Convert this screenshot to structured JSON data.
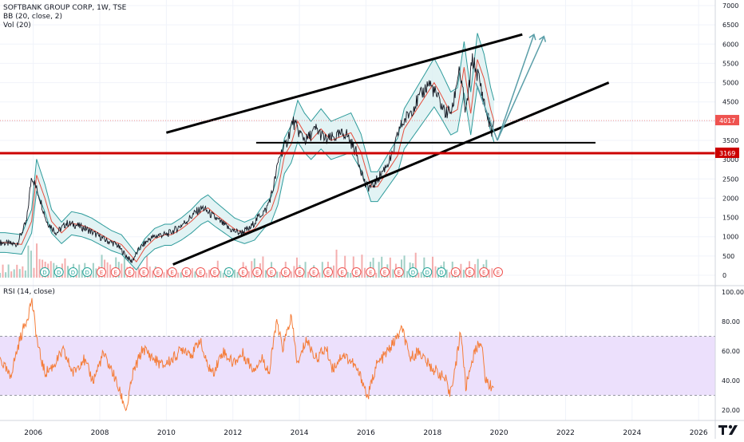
{
  "chart_data": [
    {
      "type": "line",
      "panel": "price",
      "title": "SOFTBANK GROUP CORP, 1W, TSE",
      "indicators": [
        "BB (20, close, 2)",
        "Vol (20)"
      ],
      "y_ticks": [
        7000,
        6500,
        6000,
        5500,
        5000,
        4500,
        4000,
        3500,
        3000,
        2500,
        2000,
        1500,
        1000,
        500,
        0
      ],
      "ylim": [
        -150,
        7050
      ],
      "x_ticks": [
        "2006",
        "2008",
        "2010",
        "2012",
        "2014",
        "2016",
        "2018",
        "2020",
        "2022",
        "2024",
        "2026"
      ],
      "xlim": [
        2005.0,
        2026.5
      ],
      "price_labels": [
        {
          "label": "4017",
          "value": 4017,
          "color": "#ef5350"
        },
        {
          "label": "3169",
          "value": 3169,
          "color": "#cc0000"
        }
      ],
      "series": [
        {
          "values": [
            [
              2005.0,
              850
            ],
            [
              2005.5,
              800
            ],
            [
              2005.8,
              1400
            ],
            [
              2005.95,
              2600
            ],
            [
              2006.2,
              2000
            ],
            [
              2006.4,
              1400
            ],
            [
              2006.7,
              1100
            ],
            [
              2007.0,
              1350
            ],
            [
              2007.3,
              1300
            ],
            [
              2007.6,
              1200
            ],
            [
              2007.9,
              1050
            ],
            [
              2008.2,
              900
            ],
            [
              2008.5,
              800
            ],
            [
              2008.8,
              500
            ],
            [
              2008.95,
              350
            ],
            [
              2009.2,
              700
            ],
            [
              2009.5,
              950
            ],
            [
              2009.8,
              1050
            ],
            [
              2010.0,
              1050
            ],
            [
              2010.3,
              1200
            ],
            [
              2010.6,
              1400
            ],
            [
              2010.9,
              1650
            ],
            [
              2011.1,
              1750
            ],
            [
              2011.3,
              1600
            ],
            [
              2011.6,
              1400
            ],
            [
              2011.9,
              1200
            ],
            [
              2012.2,
              1100
            ],
            [
              2012.5,
              1200
            ],
            [
              2012.8,
              1550
            ],
            [
              2013.0,
              1700
            ],
            [
              2013.2,
              2200
            ],
            [
              2013.4,
              3100
            ],
            [
              2013.6,
              3400
            ],
            [
              2013.8,
              4000
            ],
            [
              2014.0,
              3700
            ],
            [
              2014.2,
              3500
            ],
            [
              2014.5,
              3800
            ],
            [
              2014.8,
              3500
            ],
            [
              2015.1,
              3600
            ],
            [
              2015.4,
              3700
            ],
            [
              2015.7,
              3200
            ],
            [
              2016.0,
              2300
            ],
            [
              2016.2,
              2300
            ],
            [
              2016.5,
              2700
            ],
            [
              2016.8,
              3100
            ],
            [
              2017.0,
              3800
            ],
            [
              2017.3,
              4200
            ],
            [
              2017.6,
              4600
            ],
            [
              2017.9,
              5000
            ],
            [
              2018.1,
              4700
            ],
            [
              2018.4,
              4200
            ],
            [
              2018.6,
              4300
            ],
            [
              2018.8,
              5400
            ],
            [
              2019.0,
              4200
            ],
            [
              2019.2,
              5600
            ],
            [
              2019.4,
              5100
            ],
            [
              2019.6,
              4300
            ],
            [
              2019.8,
              3700
            ],
            [
              2019.85,
              4017
            ]
          ]
        }
      ],
      "annotations": [
        "upper channel trendline",
        "lower channel trendline",
        "horizontal support line",
        "red horizontal line at 3169",
        "two projected arrows"
      ]
    },
    {
      "type": "line",
      "panel": "rsi",
      "title": "RSI (14, close)",
      "y_ticks": [
        100,
        80,
        60,
        40,
        20
      ],
      "y_tick_labels": [
        "100.00",
        "80.00",
        "60.00",
        "40.00",
        "20.00"
      ],
      "ylim": [
        15,
        103
      ],
      "band": [
        30,
        70
      ],
      "series": [
        {
          "values": [
            [
              2005.0,
              55
            ],
            [
              2005.3,
              42
            ],
            [
              2005.6,
              68
            ],
            [
              2005.85,
              85
            ],
            [
              2005.95,
              95
            ],
            [
              2006.15,
              62
            ],
            [
              2006.35,
              45
            ],
            [
              2006.6,
              50
            ],
            [
              2006.9,
              60
            ],
            [
              2007.2,
              45
            ],
            [
              2007.5,
              55
            ],
            [
              2007.8,
              40
            ],
            [
              2008.1,
              58
            ],
            [
              2008.4,
              45
            ],
            [
              2008.6,
              32
            ],
            [
              2008.8,
              20
            ],
            [
              2009.0,
              45
            ],
            [
              2009.3,
              62
            ],
            [
              2009.6,
              55
            ],
            [
              2009.9,
              50
            ],
            [
              2010.2,
              55
            ],
            [
              2010.5,
              62
            ],
            [
              2010.8,
              58
            ],
            [
              2011.0,
              68
            ],
            [
              2011.2,
              52
            ],
            [
              2011.4,
              45
            ],
            [
              2011.7,
              60
            ],
            [
              2012.0,
              52
            ],
            [
              2012.3,
              58
            ],
            [
              2012.6,
              48
            ],
            [
              2012.9,
              55
            ],
            [
              2013.1,
              45
            ],
            [
              2013.3,
              80
            ],
            [
              2013.5,
              62
            ],
            [
              2013.75,
              83
            ],
            [
              2013.95,
              50
            ],
            [
              2014.2,
              68
            ],
            [
              2014.5,
              55
            ],
            [
              2014.8,
              62
            ],
            [
              2015.0,
              48
            ],
            [
              2015.3,
              58
            ],
            [
              2015.6,
              52
            ],
            [
              2015.9,
              40
            ],
            [
              2016.05,
              28
            ],
            [
              2016.3,
              50
            ],
            [
              2016.6,
              58
            ],
            [
              2016.9,
              68
            ],
            [
              2017.1,
              75
            ],
            [
              2017.3,
              55
            ],
            [
              2017.6,
              60
            ],
            [
              2017.9,
              50
            ],
            [
              2018.2,
              45
            ],
            [
              2018.4,
              40
            ],
            [
              2018.5,
              30
            ],
            [
              2018.7,
              50
            ],
            [
              2018.85,
              75
            ],
            [
              2019.0,
              35
            ],
            [
              2019.2,
              55
            ],
            [
              2019.45,
              68
            ],
            [
              2019.6,
              40
            ],
            [
              2019.75,
              36
            ],
            [
              2019.85,
              38
            ]
          ]
        }
      ]
    }
  ],
  "colors": {
    "price": "#131722",
    "bb_band": "#2e9b9b",
    "bb_mid": "#e74c3c",
    "bb_fill": "#d6eef0",
    "volume_up": "#89c4b8",
    "volume_down": "#f19a9a",
    "rsi_line": "#f57d39",
    "rsi_band": "#ece0fc",
    "red_line": "#cc0000",
    "trendline": "#000000",
    "arrow": "#5a9ea8"
  },
  "earnings_markers": [
    "D",
    "D",
    "D",
    "D",
    "E",
    "E",
    "E",
    "E",
    "E",
    "E",
    "E",
    "E",
    "E",
    "D",
    "E",
    "E",
    "E",
    "E",
    "E",
    "E",
    "E",
    "E",
    "E",
    "E",
    "E",
    "E",
    "D",
    "D",
    "D",
    "E",
    "E",
    "E",
    "E"
  ],
  "legend": {
    "title": "SOFTBANK GROUP CORP, 1W, TSE",
    "bb": "BB (20, close, 2)",
    "vol": "Vol (20)",
    "rsi": "RSI (14, close)"
  },
  "watermark": "TV"
}
